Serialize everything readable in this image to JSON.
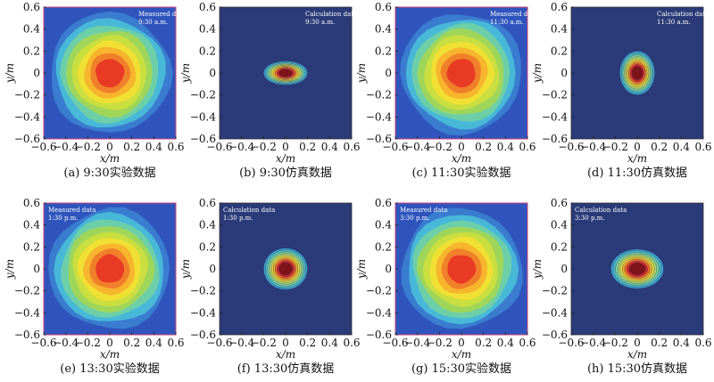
{
  "chart_data": [
    {
      "type": "heatmap",
      "caption": "(a) 9:30实验数据",
      "annotation": [
        "Measured data",
        "9:30 a.m."
      ],
      "xlabel": "x/m",
      "ylabel": "y/m",
      "xlim": [
        -0.6,
        0.6
      ],
      "ylim": [
        -0.6,
        0.6
      ],
      "xticks": [
        -0.6,
        -0.4,
        -0.2,
        0,
        0.2,
        0.4,
        0.6
      ],
      "yticks": [
        -0.6,
        -0.4,
        -0.2,
        0,
        0.2,
        0.4,
        0.6
      ],
      "center": [
        0.0,
        0.0
      ],
      "extent": [
        0.55,
        0.55
      ],
      "kind": "measured"
    },
    {
      "type": "heatmap",
      "caption": "(b) 9:30仿真数据",
      "annotation": [
        "Calculation data",
        "9:30 a.m."
      ],
      "xlabel": "x/m",
      "ylabel": "y/m",
      "xlim": [
        -0.6,
        0.6
      ],
      "ylim": [
        -0.6,
        0.6
      ],
      "xticks": [
        -0.6,
        -0.4,
        -0.2,
        0,
        0.2,
        0.4,
        0.6
      ],
      "yticks": [
        -0.6,
        -0.4,
        -0.2,
        0,
        0.2,
        0.4,
        0.6
      ],
      "center": [
        0.0,
        0.0
      ],
      "extent": [
        0.2,
        0.11
      ],
      "kind": "calculated"
    },
    {
      "type": "heatmap",
      "caption": "(c) 11:30实验数据",
      "annotation": [
        "Measured data",
        "11:30 a.m."
      ],
      "xlabel": "x/m",
      "ylabel": "y/m",
      "xlim": [
        -0.6,
        0.6
      ],
      "ylim": [
        -0.6,
        0.6
      ],
      "xticks": [
        -0.6,
        -0.4,
        -0.2,
        0,
        0.2,
        0.4,
        0.6
      ],
      "yticks": [
        -0.6,
        -0.4,
        -0.2,
        0,
        0.2,
        0.4,
        0.6
      ],
      "center": [
        0.0,
        0.0
      ],
      "extent": [
        0.55,
        0.55
      ],
      "kind": "measured"
    },
    {
      "type": "heatmap",
      "caption": "(d) 11:30仿真数据",
      "annotation": [
        "Calculation data",
        "11:30 a.m."
      ],
      "xlabel": "x/m",
      "ylabel": "y/m",
      "xlim": [
        -0.6,
        0.6
      ],
      "ylim": [
        -0.6,
        0.6
      ],
      "xticks": [
        -0.6,
        -0.4,
        -0.2,
        0,
        0.2,
        0.4,
        0.6
      ],
      "yticks": [
        -0.6,
        -0.4,
        -0.2,
        0,
        0.2,
        0.4,
        0.6
      ],
      "center": [
        0.0,
        0.0
      ],
      "extent": [
        0.16,
        0.2
      ],
      "kind": "calculated"
    },
    {
      "type": "heatmap",
      "caption": "(e) 13:30实验数据",
      "annotation": [
        "Measured data",
        "1:30 p.m."
      ],
      "xlabel": "x/m",
      "ylabel": "y/m",
      "xlim": [
        -0.6,
        0.6
      ],
      "ylim": [
        -0.6,
        0.6
      ],
      "xticks": [
        -0.6,
        -0.4,
        -0.2,
        0,
        0.2,
        0.4,
        0.6
      ],
      "yticks": [
        -0.6,
        -0.4,
        -0.2,
        0,
        0.2,
        0.4,
        0.6
      ],
      "center": [
        0.0,
        0.0
      ],
      "extent": [
        0.55,
        0.55
      ],
      "kind": "measured"
    },
    {
      "type": "heatmap",
      "caption": "(f) 13:30仿真数据",
      "annotation": [
        "Calculation data",
        "1:30 p.m."
      ],
      "xlabel": "x/m",
      "ylabel": "y/m",
      "xlim": [
        -0.6,
        0.6
      ],
      "ylim": [
        -0.6,
        0.6
      ],
      "xticks": [
        -0.6,
        -0.4,
        -0.2,
        0,
        0.2,
        0.4,
        0.6
      ],
      "yticks": [
        -0.6,
        -0.4,
        -0.2,
        0,
        0.2,
        0.4,
        0.6
      ],
      "center": [
        0.0,
        0.0
      ],
      "extent": [
        0.2,
        0.19
      ],
      "kind": "calculated"
    },
    {
      "type": "heatmap",
      "caption": "(g) 15:30实验数据",
      "annotation": [
        "Measured data",
        "3:30 p.m."
      ],
      "xlabel": "x/m",
      "ylabel": "y/m",
      "xlim": [
        -0.6,
        0.6
      ],
      "ylim": [
        -0.6,
        0.6
      ],
      "xticks": [
        -0.6,
        -0.4,
        -0.2,
        0,
        0.2,
        0.4,
        0.6
      ],
      "yticks": [
        -0.6,
        -0.4,
        -0.2,
        0,
        0.2,
        0.4,
        0.6
      ],
      "center": [
        0.0,
        0.0
      ],
      "extent": [
        0.55,
        0.55
      ],
      "kind": "measured"
    },
    {
      "type": "heatmap",
      "caption": "(h) 15:30仿真数据",
      "annotation": [
        "Calculation data",
        "3:30 p.m."
      ],
      "xlabel": "x/m",
      "ylabel": "y/m",
      "xlim": [
        -0.6,
        0.6
      ],
      "ylim": [
        -0.6,
        0.6
      ],
      "xticks": [
        -0.6,
        -0.4,
        -0.2,
        0,
        0.2,
        0.4,
        0.6
      ],
      "yticks": [
        -0.6,
        -0.4,
        -0.2,
        0,
        0.2,
        0.4,
        0.6
      ],
      "center": [
        0.0,
        0.0
      ],
      "extent": [
        0.24,
        0.18
      ],
      "kind": "calculated"
    }
  ],
  "colors": {
    "background_measured": "#2f55bd",
    "background_calculated": "#2b3a78",
    "measured_levels": [
      "#2f55bd",
      "#3a7cd0",
      "#48b8d8",
      "#6dcfa8",
      "#9fd65a",
      "#c9de3f",
      "#f0e033",
      "#f6b52c",
      "#f07f2a",
      "#e93a24"
    ],
    "calculated_levels": [
      "#3aa3d3",
      "#53c3c0",
      "#7fd29d",
      "#b0d96a",
      "#e2db3e",
      "#f3b12c",
      "#ee6b25",
      "#d7262a",
      "#7e1419"
    ],
    "plot_border": "#cc4477"
  }
}
